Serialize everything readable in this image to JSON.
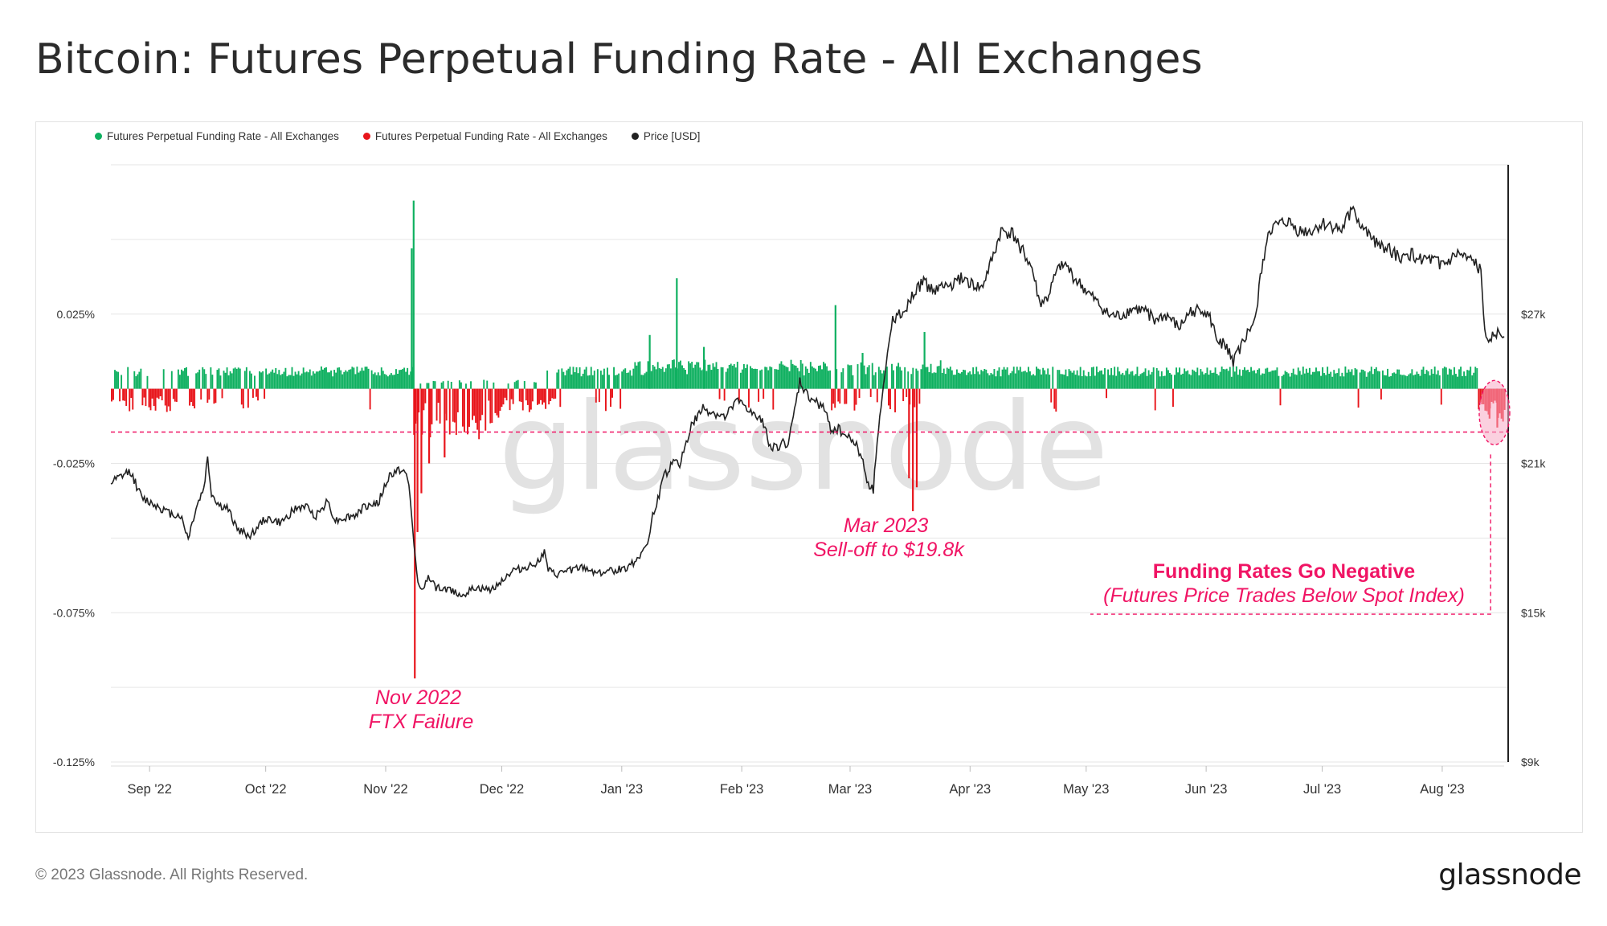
{
  "title": "Bitcoin: Futures Perpetual Funding Rate - All Exchanges",
  "footer": {
    "copyright": "© 2023 Glassnode. All Rights Reserved.",
    "logo": "glassnode"
  },
  "watermark": "glassnode",
  "colors": {
    "positive": "#0fb060",
    "negative": "#e8151b",
    "price": "#222222",
    "annotation": "#f01464",
    "grid": "#e6e6e6"
  },
  "chart_data": {
    "type": "bar+line",
    "title": "Bitcoin: Futures Perpetual Funding Rate - All Exchanges",
    "legend": [
      {
        "label": "Futures Perpetual Funding Rate - All Exchanges",
        "color": "#0fb060"
      },
      {
        "label": "Futures Perpetual Funding Rate - All Exchanges",
        "color": "#e8151b"
      },
      {
        "label": "Price [USD]",
        "color": "#222222"
      }
    ],
    "x_range_days": [
      0,
      360
    ],
    "x_ticks": [
      {
        "label": "Sep '22",
        "day": 10
      },
      {
        "label": "Oct '22",
        "day": 40
      },
      {
        "label": "Nov '22",
        "day": 71
      },
      {
        "label": "Dec '22",
        "day": 101
      },
      {
        "label": "Jan '23",
        "day": 132
      },
      {
        "label": "Feb '23",
        "day": 163
      },
      {
        "label": "Mar '23",
        "day": 191
      },
      {
        "label": "Apr '23",
        "day": 222
      },
      {
        "label": "May '23",
        "day": 252
      },
      {
        "label": "Jun '23",
        "day": 283
      },
      {
        "label": "Jul '23",
        "day": 313
      },
      {
        "label": "Aug '23",
        "day": 344
      }
    ],
    "y_left_range": [
      -0.125,
      0.075
    ],
    "y_left_ticks": [
      {
        "label": "0.025%",
        "value": 0.025
      },
      {
        "label": "-0.025%",
        "value": -0.025
      },
      {
        "label": "-0.075%",
        "value": -0.075
      },
      {
        "label": "-0.125%",
        "value": -0.125
      }
    ],
    "y_right_range": [
      9000,
      33000
    ],
    "y_right_ticks": [
      {
        "label": "$27k",
        "value": 27000
      },
      {
        "label": "$21k",
        "value": 21000
      },
      {
        "label": "$15k",
        "value": 15000
      },
      {
        "label": "$9k",
        "value": 9000
      }
    ],
    "threshold_line": -0.0145,
    "funding_rate": {
      "baseline": 0.004,
      "spikes": [
        {
          "day": 78,
          "value": 0.063
        },
        {
          "day": 77.5,
          "value": 0.047
        },
        {
          "day": 146,
          "value": 0.037
        },
        {
          "day": 139,
          "value": 0.018
        },
        {
          "day": 153,
          "value": 0.014
        },
        {
          "day": 187,
          "value": 0.028
        },
        {
          "day": 194,
          "value": 0.012
        },
        {
          "day": 210,
          "value": 0.019
        },
        {
          "day": 78.3,
          "value": -0.097
        },
        {
          "day": 79,
          "value": -0.048
        },
        {
          "day": 80,
          "value": -0.035
        },
        {
          "day": 82,
          "value": -0.025
        },
        {
          "day": 86,
          "value": -0.023
        },
        {
          "day": 207,
          "value": -0.041
        },
        {
          "day": 206,
          "value": -0.03
        },
        {
          "day": 208,
          "value": -0.033
        },
        {
          "day": 356,
          "value": -0.01
        },
        {
          "day": 358,
          "value": -0.013
        }
      ]
    },
    "price": [
      [
        0,
        20200
      ],
      [
        5,
        20700
      ],
      [
        8,
        19600
      ],
      [
        12,
        19300
      ],
      [
        15,
        19000
      ],
      [
        18,
        18900
      ],
      [
        20,
        18000
      ],
      [
        22,
        19200
      ],
      [
        24,
        20000
      ],
      [
        25,
        21200
      ],
      [
        26,
        19800
      ],
      [
        28,
        19300
      ],
      [
        30,
        19200
      ],
      [
        33,
        18300
      ],
      [
        36,
        18100
      ],
      [
        40,
        18800
      ],
      [
        44,
        18600
      ],
      [
        47,
        19100
      ],
      [
        50,
        19300
      ],
      [
        53,
        18900
      ],
      [
        56,
        19500
      ],
      [
        58,
        18700
      ],
      [
        60,
        18800
      ],
      [
        63,
        18900
      ],
      [
        66,
        19300
      ],
      [
        69,
        19400
      ],
      [
        72,
        20500
      ],
      [
        75,
        20800
      ],
      [
        76,
        20600
      ],
      [
        77,
        20100
      ],
      [
        79,
        16600
      ],
      [
        80,
        15900
      ],
      [
        82,
        16400
      ],
      [
        84,
        16000
      ],
      [
        88,
        15900
      ],
      [
        91,
        15700
      ],
      [
        94,
        16000
      ],
      [
        98,
        15900
      ],
      [
        101,
        16300
      ],
      [
        104,
        16700
      ],
      [
        107,
        16800
      ],
      [
        110,
        17000
      ],
      [
        112,
        17400
      ],
      [
        113,
        16700
      ],
      [
        115,
        16500
      ],
      [
        118,
        16700
      ],
      [
        122,
        16800
      ],
      [
        126,
        16600
      ],
      [
        130,
        16700
      ],
      [
        133,
        16800
      ],
      [
        135,
        17000
      ],
      [
        137,
        17400
      ],
      [
        139,
        17900
      ],
      [
        140,
        18900
      ],
      [
        142,
        19900
      ],
      [
        143,
        20500
      ],
      [
        145,
        21000
      ],
      [
        147,
        21000
      ],
      [
        150,
        22500
      ],
      [
        153,
        23200
      ],
      [
        156,
        23000
      ],
      [
        159,
        22800
      ],
      [
        161,
        23500
      ],
      [
        164,
        23300
      ],
      [
        166,
        22900
      ],
      [
        169,
        22600
      ],
      [
        170,
        21800
      ],
      [
        172,
        21600
      ],
      [
        173,
        21800
      ],
      [
        175,
        21800
      ],
      [
        176,
        22500
      ],
      [
        178,
        24300
      ],
      [
        180,
        23700
      ],
      [
        184,
        23300
      ],
      [
        186,
        22400
      ],
      [
        188,
        22400
      ],
      [
        190,
        22100
      ],
      [
        192,
        21900
      ],
      [
        194,
        21300
      ],
      [
        195,
        20500
      ],
      [
        196,
        20100
      ],
      [
        197,
        19900
      ],
      [
        198,
        22000
      ],
      [
        200,
        24500
      ],
      [
        202,
        26800
      ],
      [
        205,
        27200
      ],
      [
        208,
        27900
      ],
      [
        210,
        28300
      ],
      [
        212,
        28000
      ],
      [
        215,
        28100
      ],
      [
        218,
        28200
      ],
      [
        220,
        28500
      ],
      [
        222,
        28200
      ],
      [
        225,
        28000
      ],
      [
        228,
        29300
      ],
      [
        230,
        30300
      ],
      [
        233,
        30200
      ],
      [
        236,
        29400
      ],
      [
        238,
        28800
      ],
      [
        240,
        27400
      ],
      [
        242,
        27600
      ],
      [
        244,
        28500
      ],
      [
        246,
        29100
      ],
      [
        249,
        28400
      ],
      [
        252,
        27900
      ],
      [
        255,
        27400
      ],
      [
        258,
        26900
      ],
      [
        261,
        26900
      ],
      [
        264,
        27200
      ],
      [
        267,
        27100
      ],
      [
        270,
        26800
      ],
      [
        273,
        26900
      ],
      [
        276,
        26400
      ],
      [
        279,
        27100
      ],
      [
        282,
        27200
      ],
      [
        284,
        26800
      ],
      [
        286,
        25900
      ],
      [
        288,
        25800
      ],
      [
        290,
        25100
      ],
      [
        293,
        26000
      ],
      [
        296,
        26900
      ],
      [
        297,
        28500
      ],
      [
        299,
        30300
      ],
      [
        301,
        30500
      ],
      [
        304,
        30700
      ],
      [
        307,
        30300
      ],
      [
        310,
        30300
      ],
      [
        313,
        30600
      ],
      [
        316,
        30500
      ],
      [
        318,
        30300
      ],
      [
        321,
        31400
      ],
      [
        322,
        30800
      ],
      [
        325,
        30100
      ],
      [
        328,
        29800
      ],
      [
        332,
        29400
      ],
      [
        334,
        29200
      ],
      [
        336,
        29400
      ],
      [
        339,
        29200
      ],
      [
        342,
        29100
      ],
      [
        345,
        29000
      ],
      [
        348,
        29400
      ],
      [
        350,
        29200
      ],
      [
        353,
        29000
      ],
      [
        354,
        28700
      ],
      [
        355,
        26400
      ],
      [
        356,
        26100
      ],
      [
        358,
        26200
      ],
      [
        360,
        26100
      ]
    ],
    "annotations": [
      {
        "lines": [
          "Nov 2022",
          "FTX Failure"
        ],
        "style": "italic"
      },
      {
        "lines": [
          "Mar 2023",
          "Sell-off to $19.8k"
        ],
        "style": "italic"
      },
      {
        "lines": [
          "Funding Rates Go Negative"
        ],
        "style": "bold"
      },
      {
        "lines": [
          "(Futures Price Trades Below Spot Index)"
        ],
        "style": "italic"
      }
    ]
  }
}
